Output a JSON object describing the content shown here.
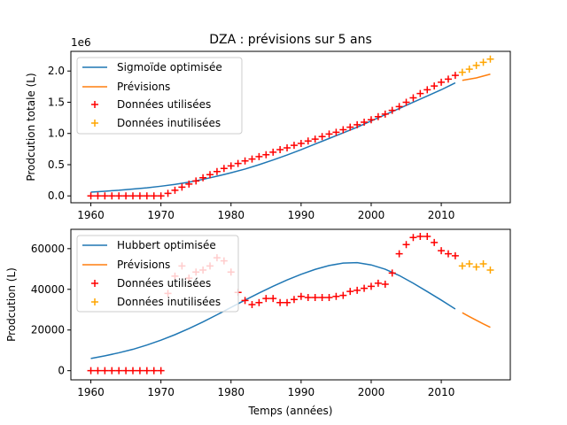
{
  "chart_data": [
    {
      "type": "line",
      "title": "DZA : prévisions sur 5 ans",
      "xlabel": "",
      "ylabel": "Prodcution totale (L)",
      "offset_text": "1e6",
      "xlim": [
        1957.15,
        2019.85
      ],
      "ylim": [
        -0.11,
        2.315
      ],
      "xticks": [
        1960,
        1970,
        1980,
        1990,
        2000,
        2010
      ],
      "yticks": [
        0.0,
        0.5,
        1.0,
        1.5,
        2.0
      ],
      "ytick_labels": [
        "0.0",
        "0.5",
        "1.0",
        "1.5",
        "2.0"
      ],
      "legend_position": "upper left",
      "legend": [
        "Sigmoïde optimisée",
        "Prévisions",
        "Données utilisées",
        "Données inutilisées"
      ],
      "colors": {
        "fit": "#1f77b4",
        "forecast": "#ff7f0e",
        "used": "#ff0000",
        "unused": "#ffa500"
      },
      "series": [
        {
          "name": "Sigmoïde optimisée",
          "kind": "line",
          "color": "#1f77b4",
          "x": [
            1960,
            1962,
            1964,
            1966,
            1968,
            1970,
            1972,
            1974,
            1976,
            1978,
            1980,
            1982,
            1984,
            1986,
            1988,
            1990,
            1992,
            1994,
            1996,
            1998,
            2000,
            2002,
            2004,
            2006,
            2008,
            2010,
            2012
          ],
          "y": [
            0.06,
            0.075,
            0.09,
            0.11,
            0.13,
            0.155,
            0.185,
            0.22,
            0.265,
            0.315,
            0.37,
            0.43,
            0.5,
            0.575,
            0.655,
            0.74,
            0.83,
            0.92,
            1.01,
            1.1,
            1.2,
            1.3,
            1.4,
            1.5,
            1.6,
            1.7,
            1.81
          ]
        },
        {
          "name": "Prévisions",
          "kind": "line",
          "color": "#ff7f0e",
          "x": [
            2013,
            2014,
            2015,
            2016,
            2017
          ],
          "y": [
            1.85,
            1.87,
            1.89,
            1.92,
            1.95
          ]
        },
        {
          "name": "Données utilisées",
          "kind": "scatter",
          "marker": "+",
          "color": "#ff0000",
          "x": [
            1960,
            1961,
            1962,
            1963,
            1964,
            1965,
            1966,
            1967,
            1968,
            1969,
            1970,
            1971,
            1972,
            1973,
            1974,
            1975,
            1976,
            1977,
            1978,
            1979,
            1980,
            1981,
            1982,
            1983,
            1984,
            1985,
            1986,
            1987,
            1988,
            1989,
            1990,
            1991,
            1992,
            1993,
            1994,
            1995,
            1996,
            1997,
            1998,
            1999,
            2000,
            2001,
            2002,
            2003,
            2004,
            2005,
            2006,
            2007,
            2008,
            2009,
            2010,
            2011,
            2012
          ],
          "y": [
            0,
            0,
            0,
            0,
            0,
            0,
            0,
            0,
            0,
            0,
            0,
            0.04,
            0.09,
            0.14,
            0.19,
            0.24,
            0.29,
            0.34,
            0.39,
            0.44,
            0.48,
            0.52,
            0.56,
            0.59,
            0.63,
            0.66,
            0.7,
            0.74,
            0.77,
            0.81,
            0.84,
            0.88,
            0.91,
            0.95,
            0.99,
            1.02,
            1.06,
            1.1,
            1.14,
            1.18,
            1.22,
            1.27,
            1.31,
            1.37,
            1.43,
            1.5,
            1.57,
            1.64,
            1.7,
            1.76,
            1.82,
            1.87,
            1.93
          ]
        },
        {
          "name": "Données inutilisées",
          "kind": "scatter",
          "marker": "+",
          "color": "#ffa500",
          "x": [
            2013,
            2014,
            2015,
            2016,
            2017
          ],
          "y": [
            1.98,
            2.03,
            2.09,
            2.14,
            2.19
          ]
        }
      ]
    },
    {
      "type": "line",
      "title": "",
      "xlabel": "Temps (années)",
      "ylabel": "Prodcution (L)",
      "xlim": [
        1957.15,
        2019.85
      ],
      "ylim": [
        -4500,
        69500
      ],
      "xticks": [
        1960,
        1970,
        1980,
        1990,
        2000,
        2010
      ],
      "yticks": [
        0,
        20000,
        40000,
        60000
      ],
      "ytick_labels": [
        "0",
        "20000",
        "40000",
        "60000"
      ],
      "legend_position": "upper left",
      "legend": [
        "Hubbert optimisée",
        "Prévisions",
        "Données utilisées",
        "Données inutilisées"
      ],
      "colors": {
        "fit": "#1f77b4",
        "forecast": "#ff7f0e",
        "used": "#ff0000",
        "unused": "#ffa500"
      },
      "series": [
        {
          "name": "Hubbert optimisée",
          "kind": "line",
          "color": "#1f77b4",
          "x": [
            1960,
            1962,
            1964,
            1966,
            1968,
            1970,
            1972,
            1974,
            1976,
            1978,
            1980,
            1982,
            1984,
            1986,
            1988,
            1990,
            1992,
            1994,
            1996,
            1998,
            2000,
            2002,
            2004,
            2006,
            2008,
            2010,
            2012
          ],
          "y": [
            6000,
            7300,
            8800,
            10500,
            12600,
            15000,
            17700,
            20700,
            24000,
            27500,
            31100,
            34700,
            38200,
            41500,
            44600,
            47400,
            49800,
            51700,
            52900,
            53100,
            52000,
            49900,
            46800,
            43000,
            38900,
            34700,
            30300
          ]
        },
        {
          "name": "Prévisions",
          "kind": "line",
          "color": "#ff7f0e",
          "x": [
            2013,
            2014,
            2015,
            2016,
            2017
          ],
          "y": [
            28500,
            26600,
            24800,
            23000,
            21300
          ]
        },
        {
          "name": "Données utilisées",
          "kind": "scatter",
          "marker": "+",
          "color": "#ff0000",
          "x": [
            1960,
            1961,
            1962,
            1963,
            1964,
            1965,
            1966,
            1967,
            1968,
            1969,
            1970,
            1971,
            1972,
            1973,
            1974,
            1975,
            1976,
            1977,
            1978,
            1979,
            1980,
            1981,
            1982,
            1983,
            1984,
            1985,
            1986,
            1987,
            1988,
            1989,
            1990,
            1991,
            1992,
            1993,
            1994,
            1995,
            1996,
            1997,
            1998,
            1999,
            2000,
            2001,
            2002,
            2003,
            2004,
            2005,
            2006,
            2007,
            2008,
            2009,
            2010,
            2011,
            2012
          ],
          "y": [
            0,
            0,
            0,
            0,
            0,
            0,
            0,
            0,
            0,
            0,
            0,
            38000,
            46500,
            51500,
            45500,
            48500,
            49500,
            51500,
            55500,
            54000,
            48500,
            38500,
            34500,
            32500,
            33500,
            35500,
            35500,
            33500,
            33500,
            35000,
            36500,
            36000,
            36000,
            36000,
            36000,
            36500,
            37000,
            39000,
            39500,
            40500,
            41500,
            43000,
            42500,
            48000,
            57500,
            62000,
            65500,
            66000,
            66000,
            63000,
            59000,
            57500,
            56500
          ]
        },
        {
          "name": "Données inutilisées",
          "kind": "scatter",
          "marker": "+",
          "color": "#ffa500",
          "x": [
            2013,
            2014,
            2015,
            2016,
            2017
          ],
          "y": [
            51500,
            52500,
            51000,
            52500,
            49500
          ]
        }
      ]
    }
  ]
}
